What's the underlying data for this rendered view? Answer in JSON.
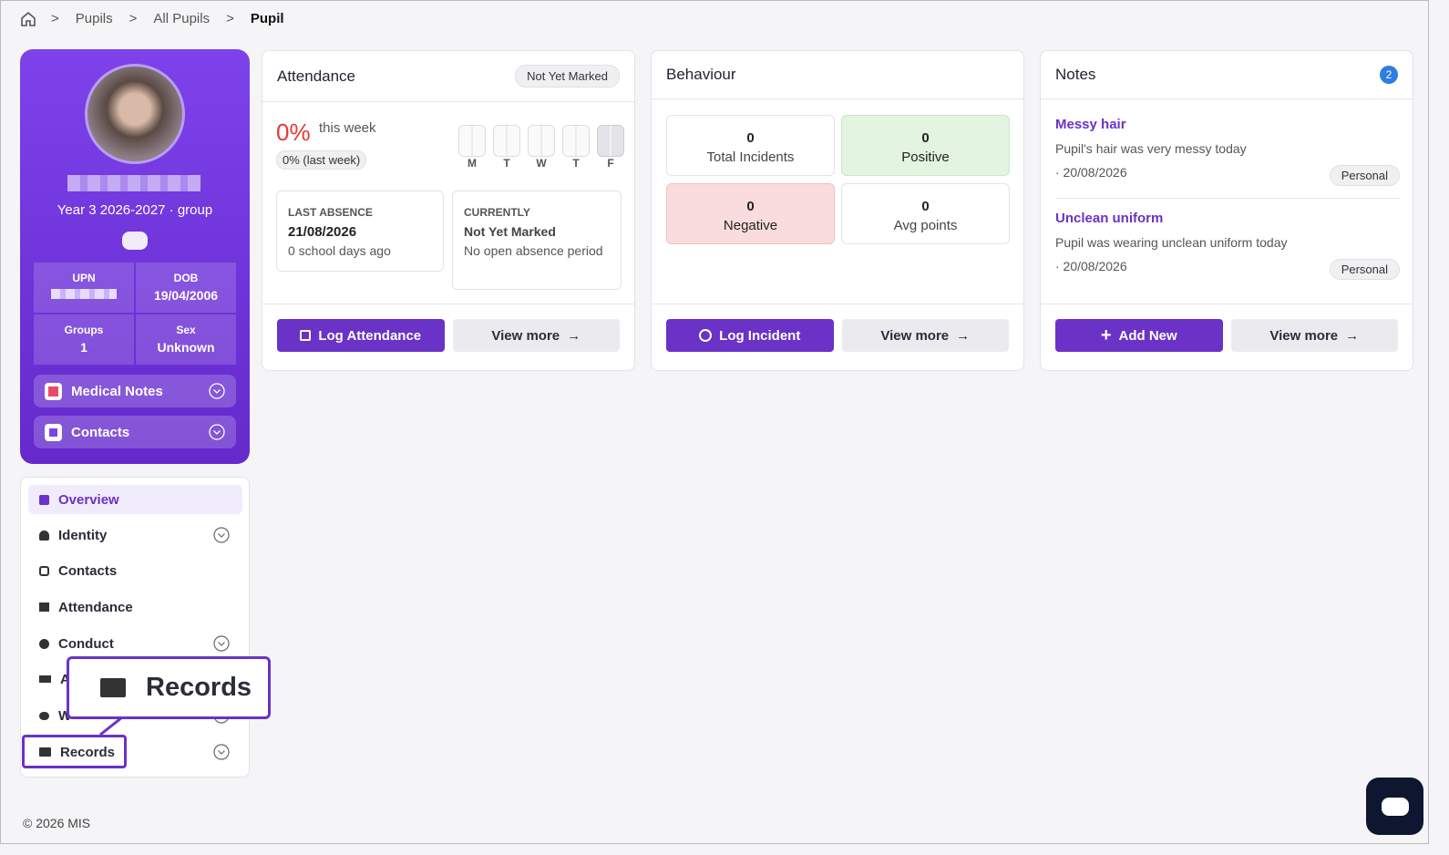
{
  "breadcrumb": [
    "Pupils",
    "All Pupils",
    "Pupil"
  ],
  "profile": {
    "group": "Year 3 2026-2027 · group",
    "fields": [
      {
        "label": "UPN"
      },
      {
        "label": "DOB",
        "value": "19/04/2006"
      },
      {
        "label": "Groups",
        "value": "1"
      },
      {
        "label": "Sex",
        "value": "Unknown"
      }
    ],
    "sections": [
      "Medical Notes",
      "Contacts"
    ]
  },
  "nav": [
    "Overview",
    "Identity",
    "Contacts",
    "Attendance",
    "Conduct",
    "A",
    "W",
    "Records"
  ],
  "callout": "Records",
  "attendance": {
    "title": "Attendance",
    "status": "Not Yet Marked",
    "percent": "0%",
    "period": "this week",
    "last_week": "0% (last week)",
    "days": [
      "M",
      "T",
      "W",
      "T",
      "F"
    ],
    "last_absence": {
      "label": "LAST ABSENCE",
      "date": "21/08/2026",
      "ago": "0 school days ago"
    },
    "currently": {
      "label": "CURRENTLY",
      "status": "Not Yet Marked",
      "detail": "No open absence period"
    },
    "buttons": [
      "Log Attendance",
      "View more"
    ]
  },
  "behaviour": {
    "title": "Behaviour",
    "stats": [
      {
        "value": 0,
        "label": "Total Incidents"
      },
      {
        "value": 0,
        "label": "Positive"
      },
      {
        "value": 0,
        "label": "Negative"
      },
      {
        "value": 0,
        "label": "Avg points"
      }
    ],
    "buttons": [
      "Log Incident",
      "View more"
    ]
  },
  "notes": {
    "title": "Notes",
    "count": 2,
    "items": [
      {
        "title": "Messy hair",
        "text": "Pupil's hair was very messy today",
        "date": "· 20/08/2026",
        "tag": "Personal"
      },
      {
        "title": "Unclean uniform",
        "text": "Pupil was wearing unclean uniform today",
        "date": "· 20/08/2026",
        "tag": "Personal"
      }
    ],
    "buttons": [
      "Add New",
      "View more"
    ]
  },
  "footer": "© 2026 MIS"
}
